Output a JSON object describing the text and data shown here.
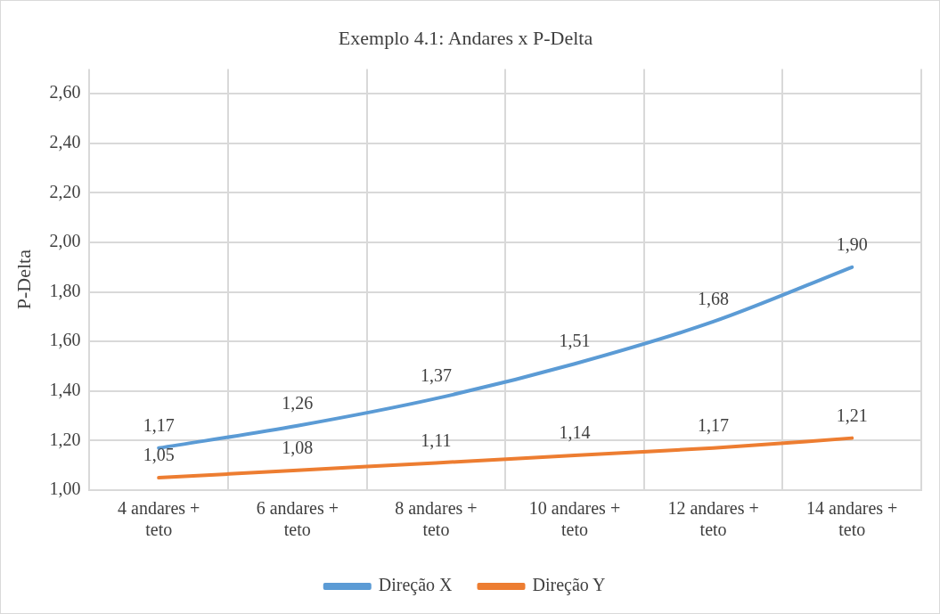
{
  "chart_data": {
    "type": "line",
    "title": "Exemplo 4.1: Andares x P-Delta",
    "ylabel": "P-Delta",
    "categories": [
      "4 andares + teto",
      "6 andares + teto",
      "8 andares + teto",
      "10 andares + teto",
      "12 andares + teto",
      "14 andares + teto"
    ],
    "series": [
      {
        "name": "Direção X",
        "color": "#5b9bd5",
        "values": [
          1.17,
          1.26,
          1.37,
          1.51,
          1.68,
          1.9
        ],
        "value_labels": [
          "1,17",
          "1,26",
          "1,37",
          "1,51",
          "1,68",
          "1,90"
        ]
      },
      {
        "name": "Direção Y",
        "color": "#ed7d31",
        "values": [
          1.05,
          1.08,
          1.11,
          1.14,
          1.17,
          1.21
        ],
        "value_labels": [
          "1,05",
          "1,08",
          "1,11",
          "1,14",
          "1,17",
          "1,21"
        ]
      }
    ],
    "ylim": [
      1,
      2.7
    ],
    "yticks": [
      {
        "value": 1,
        "label": "1,00"
      },
      {
        "value": 1.2,
        "label": "1,20"
      },
      {
        "value": 1.4,
        "label": "1,40"
      },
      {
        "value": 1.6,
        "label": "1,60"
      },
      {
        "value": 1.8,
        "label": "1,80"
      },
      {
        "value": 2,
        "label": "2,00"
      },
      {
        "value": 2.2,
        "label": "2,20"
      },
      {
        "value": 2.4,
        "label": "2,40"
      },
      {
        "value": 2.6,
        "label": "2,60"
      }
    ],
    "grid": true,
    "legend": "bottom",
    "marker": "none",
    "line_style": "solid"
  }
}
